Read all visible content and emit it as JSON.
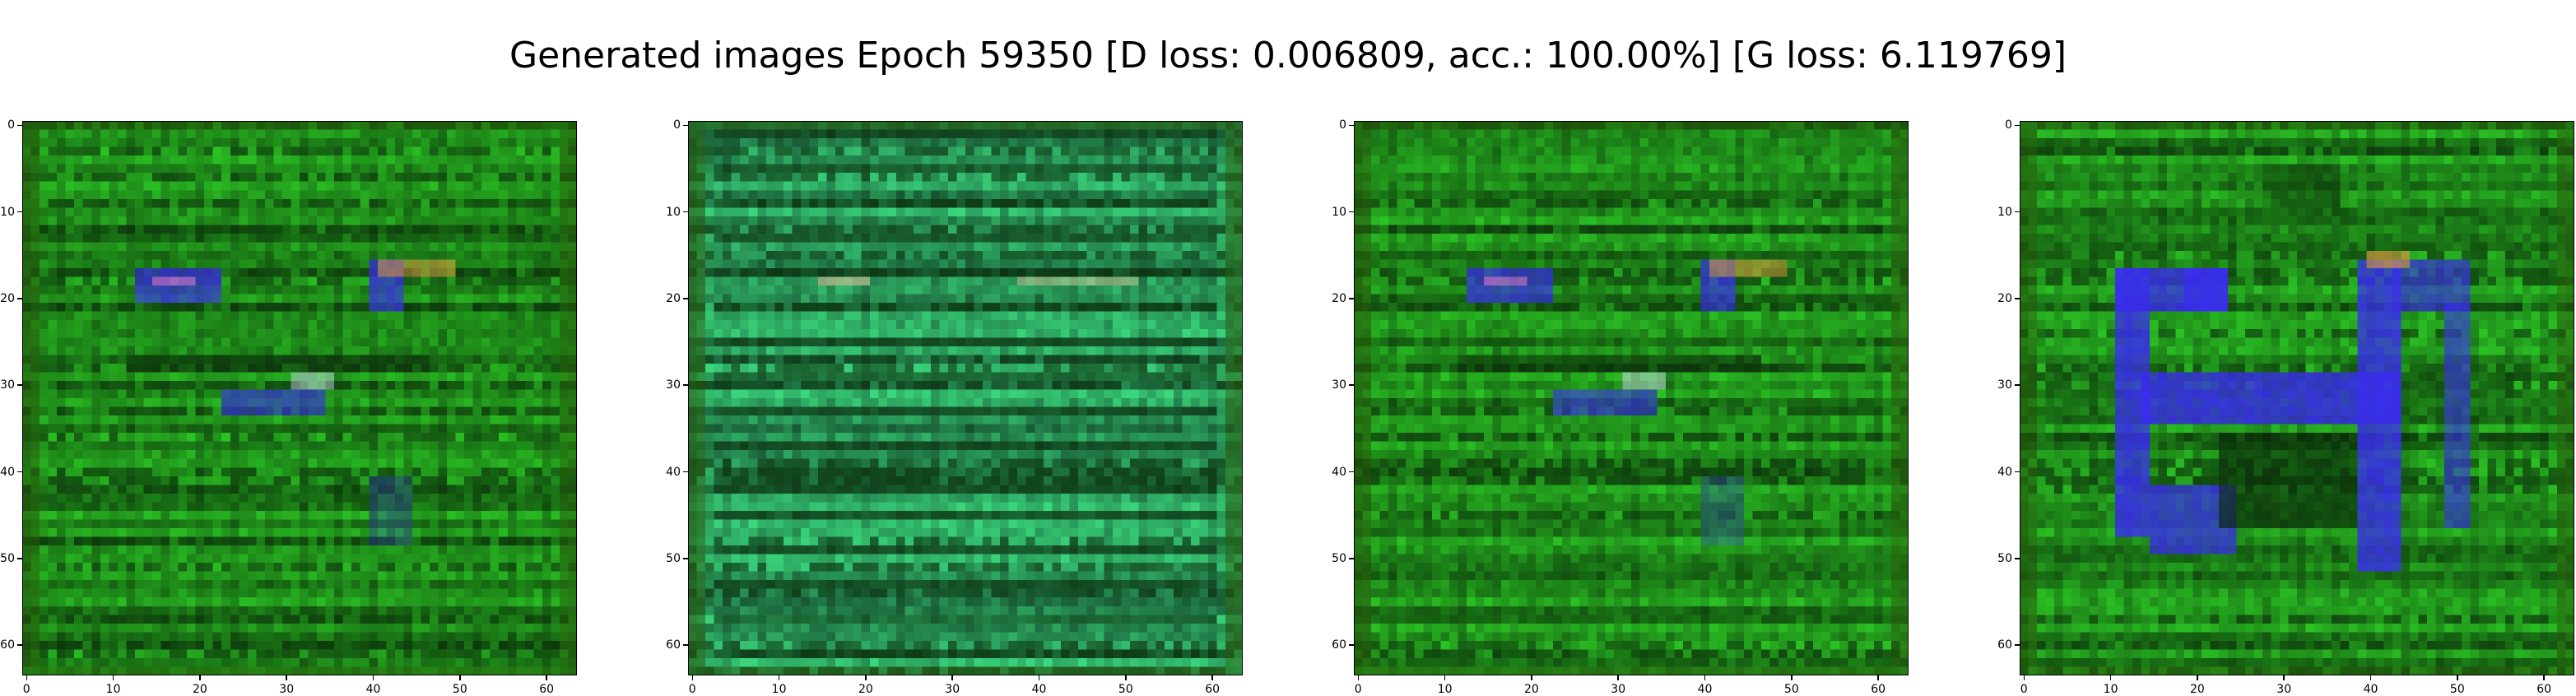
{
  "figure": {
    "title": "Generated images Epoch 59350 [D loss: 0.006809, acc.: 100.00%] [G loss: 6.119769]"
  },
  "image_grid": {
    "image_size": 64,
    "x_tick_labels": [
      "0",
      "10",
      "20",
      "30",
      "40",
      "50",
      "60"
    ],
    "y_tick_labels": [
      "0",
      "10",
      "20",
      "30",
      "40",
      "50",
      "60"
    ],
    "colors": {
      "background_green": "#1f8a1a",
      "dark_stripe": "#0a2a0a",
      "accent_blue": "#3a2cf0",
      "accent_orange": "#e0a040",
      "teal_tint": "#2a9a5a"
    },
    "panels": [
      {
        "name": "sample-1",
        "style": "face",
        "tint": "green"
      },
      {
        "name": "sample-2",
        "style": "stripes",
        "tint": "teal"
      },
      {
        "name": "sample-3",
        "style": "face",
        "tint": "green"
      },
      {
        "name": "sample-4",
        "style": "glyph",
        "tint": "green"
      }
    ]
  }
}
